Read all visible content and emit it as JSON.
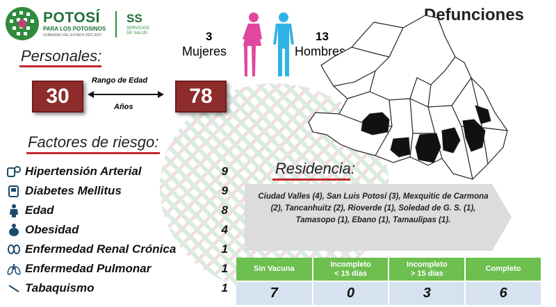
{
  "header": {
    "logo_title": "POTOSÍ",
    "logo_subtitle": "PARA LOS POTOSINOS",
    "logo_caption": "GOBIERNO DEL ESTADO 2021-2027",
    "ss_title": "SS",
    "ss_sub1": "SERVICIOS",
    "ss_sub2": "DE SALUD",
    "page_title": "Defunciones"
  },
  "personales": {
    "title": "Personales:",
    "mujeres_count": "3",
    "mujeres_label": "Mujeres",
    "hombres_count": "13",
    "hombres_label": "Hombres",
    "age_min": "30",
    "age_max": "78",
    "range_label": "Rango de Edad",
    "range_unit": "Años",
    "female_color": "#e0479e",
    "male_color": "#2fb3e6"
  },
  "factores": {
    "title": "Factores de riesgo:",
    "items": [
      {
        "label": "Hipertensión Arterial",
        "value": "9",
        "icon": "blood-pressure-icon"
      },
      {
        "label": "Diabetes Mellitus",
        "value": "9",
        "icon": "glucometer-icon"
      },
      {
        "label": "Edad",
        "value": "8",
        "icon": "elderly-person-icon"
      },
      {
        "label": "Obesidad",
        "value": "4",
        "icon": "obese-person-icon"
      },
      {
        "label": "Enfermedad Renal Crónica",
        "value": "1",
        "icon": "kidneys-icon"
      },
      {
        "label": "Enfermedad Pulmonar",
        "value": "1",
        "icon": "lungs-icon"
      },
      {
        "label": "Tabaquismo",
        "value": "1",
        "icon": "cigarette-icon"
      }
    ]
  },
  "residencia": {
    "title": "Residencia:",
    "text": "Ciudad Valles (4), San Luis Potosí (3), Mexquitic de Carmona (2), Tancanhuitz (2), Rioverde (1), Soledad de G. S. (1), Tamasopo (1), Ebano (1), Tamaulipas (1)."
  },
  "vacunacion": {
    "headers": [
      "Sin Vacuna",
      "Incompleto\n< 15 días",
      "Incompleto\n> 15 días",
      "Completo"
    ],
    "values": [
      "7",
      "0",
      "3",
      "6"
    ]
  },
  "colors": {
    "accent_red": "#8e2b2b",
    "underline_red": "#c0282d",
    "table_header_green": "#6dbf4f",
    "table_cell_blue": "#d6e2f0"
  }
}
